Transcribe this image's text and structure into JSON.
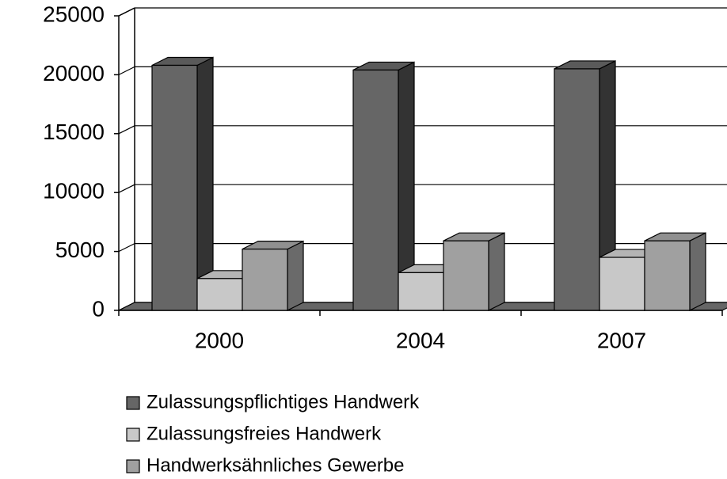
{
  "chart_data": {
    "type": "bar3d",
    "categories": [
      "2000",
      "2004",
      "2007"
    ],
    "series": [
      {
        "name": "Zulassungspflichtiges Handwerk",
        "color": "#666666",
        "side": "#333333",
        "top": "#5a5a5a",
        "values": [
          20800,
          20400,
          20500
        ]
      },
      {
        "name": "Zulassungsfreies Handwerk",
        "color": "#c8c8c8",
        "side": "#8c8c8c",
        "top": "#b4b4b4",
        "values": [
          2700,
          3200,
          4500
        ]
      },
      {
        "name": "Handwerksähnliches Gewerbe",
        "color": "#a0a0a0",
        "side": "#6a6a6a",
        "top": "#909090",
        "values": [
          5200,
          5900,
          5900
        ]
      }
    ],
    "ylim": [
      0,
      25000
    ],
    "yticks": [
      0,
      5000,
      10000,
      15000,
      20000,
      25000
    ],
    "grid": true
  }
}
